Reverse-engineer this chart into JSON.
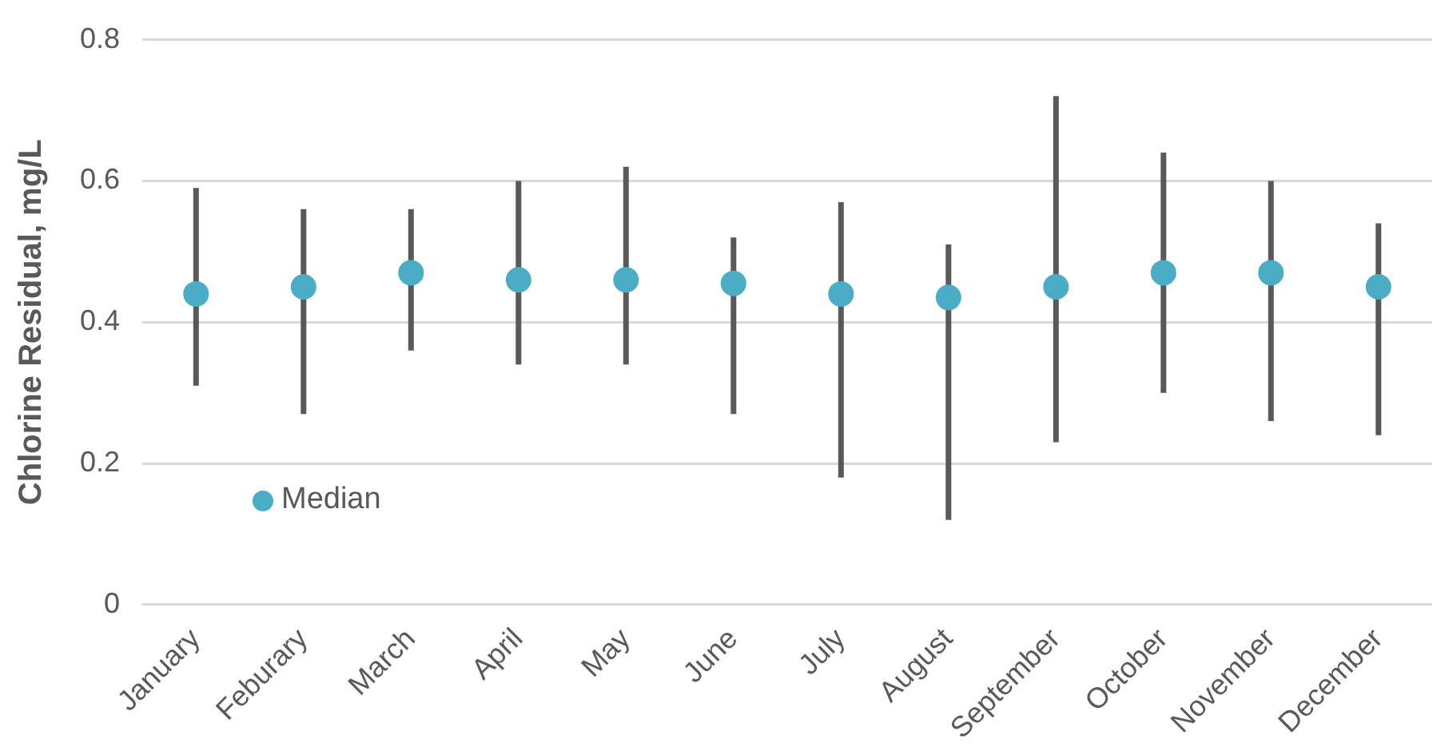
{
  "chart_data": {
    "type": "scatter",
    "ylabel": "Chlorine Residual, mg/L",
    "categories": [
      "January",
      "Feburary",
      "March",
      "April",
      "May",
      "June",
      "July",
      "August",
      "September",
      "October",
      "November",
      "December"
    ],
    "series": [
      {
        "name": "Median",
        "color": "#4bacc6",
        "values": [
          0.44,
          0.45,
          0.47,
          0.46,
          0.46,
          0.455,
          0.44,
          0.435,
          0.45,
          0.47,
          0.47,
          0.45
        ],
        "errors": [
          [
            0.31,
            0.59
          ],
          [
            0.27,
            0.56
          ],
          [
            0.36,
            0.56
          ],
          [
            0.34,
            0.6
          ],
          [
            0.34,
            0.62
          ],
          [
            0.27,
            0.52
          ],
          [
            0.18,
            0.57
          ],
          [
            0.12,
            0.51
          ],
          [
            0.23,
            0.72
          ],
          [
            0.3,
            0.64
          ],
          [
            0.26,
            0.6
          ],
          [
            0.24,
            0.54
          ]
        ]
      }
    ],
    "ylim": [
      0,
      0.8
    ],
    "yticks": [
      0,
      0.2,
      0.4,
      0.6,
      0.8
    ],
    "grid": "y",
    "legend": "bottom left",
    "marker": "circle"
  }
}
